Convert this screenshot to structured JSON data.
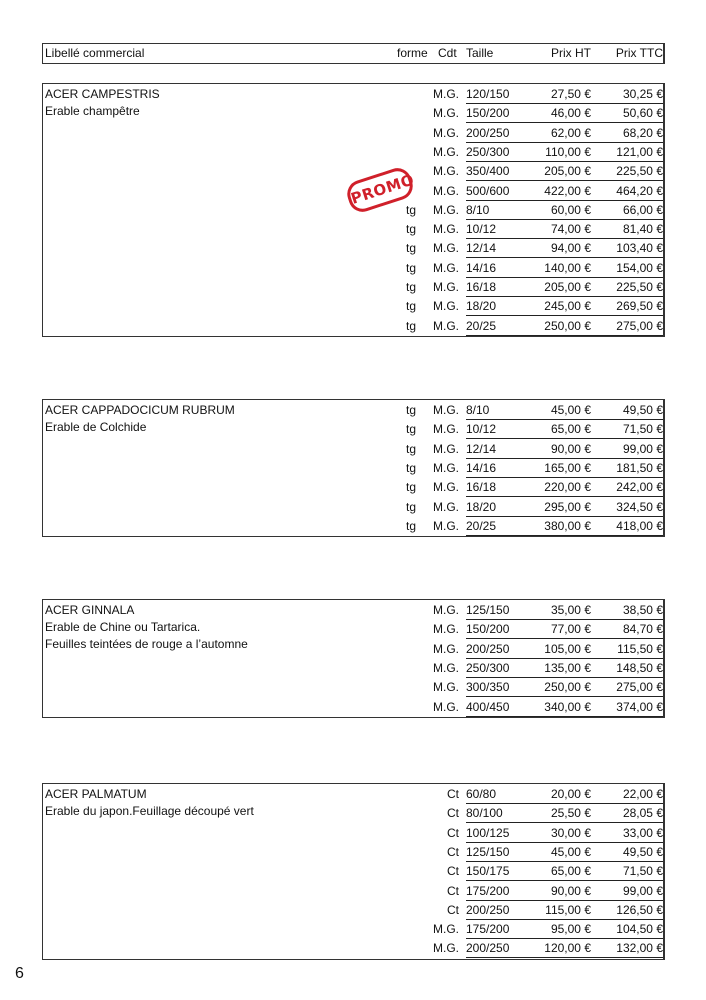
{
  "header": {
    "libelle": "Libellé commercial",
    "forme": "forme",
    "cdt": "Cdt",
    "taille": "Taille",
    "prix_ht": "Prix HT",
    "prix_ttc": "Prix TTC"
  },
  "promo_stamp": "PROMO",
  "page_number": "6",
  "sections": [
    {
      "name": "ACER CAMPESTRIS",
      "desc": [
        "Erable champêtre"
      ],
      "rows": [
        [
          "",
          "M.G.",
          "120/150",
          "27,50 €",
          "30,25 €"
        ],
        [
          "",
          "M.G.",
          "150/200",
          "46,00 €",
          "50,60 €"
        ],
        [
          "",
          "M.G.",
          "200/250",
          "62,00 €",
          "68,20 €"
        ],
        [
          "",
          "M.G.",
          "250/300",
          "110,00 €",
          "121,00 €"
        ],
        [
          "",
          "M.G.",
          "350/400",
          "205,00 €",
          "225,50 €"
        ],
        [
          "",
          "M.G.",
          "500/600",
          "422,00 €",
          "464,20 €"
        ],
        [
          "tg",
          "M.G.",
          "8/10",
          "60,00 €",
          "66,00 €"
        ],
        [
          "tg",
          "M.G.",
          "10/12",
          "74,00 €",
          "81,40 €"
        ],
        [
          "tg",
          "M.G.",
          "12/14",
          "94,00 €",
          "103,40 €"
        ],
        [
          "tg",
          "M.G.",
          "14/16",
          "140,00 €",
          "154,00 €"
        ],
        [
          "tg",
          "M.G.",
          "16/18",
          "205,00 €",
          "225,50 €"
        ],
        [
          "tg",
          "M.G.",
          "18/20",
          "245,00 €",
          "269,50 €"
        ],
        [
          "tg",
          "M.G.",
          "20/25",
          "250,00 €",
          "275,00 €"
        ]
      ]
    },
    {
      "name": "ACER CAPPADOCICUM RUBRUM",
      "desc": [
        "Erable de Colchide"
      ],
      "rows": [
        [
          "tg",
          "M.G.",
          "8/10",
          "45,00 €",
          "49,50 €"
        ],
        [
          "tg",
          "M.G.",
          "10/12",
          "65,00 €",
          "71,50 €"
        ],
        [
          "tg",
          "M.G.",
          "12/14",
          "90,00 €",
          "99,00 €"
        ],
        [
          "tg",
          "M.G.",
          "14/16",
          "165,00 €",
          "181,50 €"
        ],
        [
          "tg",
          "M.G.",
          "16/18",
          "220,00 €",
          "242,00 €"
        ],
        [
          "tg",
          "M.G.",
          "18/20",
          "295,00 €",
          "324,50 €"
        ],
        [
          "tg",
          "M.G.",
          "20/25",
          "380,00 €",
          "418,00 €"
        ]
      ]
    },
    {
      "name": "ACER GINNALA",
      "desc": [
        "Erable de Chine ou Tartarica.",
        "Feuilles teintées de rouge a l’automne"
      ],
      "rows": [
        [
          "",
          "M.G.",
          "125/150",
          "35,00 €",
          "38,50 €"
        ],
        [
          "",
          "M.G.",
          "150/200",
          "77,00 €",
          "84,70 €"
        ],
        [
          "",
          "M.G.",
          "200/250",
          "105,00 €",
          "115,50 €"
        ],
        [
          "",
          "M.G.",
          "250/300",
          "135,00 €",
          "148,50 €"
        ],
        [
          "",
          "M.G.",
          "300/350",
          "250,00 €",
          "275,00 €"
        ],
        [
          "",
          "M.G.",
          "400/450",
          "340,00 €",
          "374,00 €"
        ]
      ]
    },
    {
      "name": "ACER PALMATUM",
      "desc": [
        "Erable du japon.Feuillage découpé vert"
      ],
      "rows": [
        [
          "",
          "Ct",
          "60/80",
          "20,00 €",
          "22,00 €"
        ],
        [
          "",
          "Ct",
          "80/100",
          "25,50 €",
          "28,05 €"
        ],
        [
          "",
          "Ct",
          "100/125",
          "30,00 €",
          "33,00 €"
        ],
        [
          "",
          "Ct",
          "125/150",
          "45,00 €",
          "49,50 €"
        ],
        [
          "",
          "Ct",
          "150/175",
          "65,00 €",
          "71,50 €"
        ],
        [
          "",
          "Ct",
          "175/200",
          "90,00 €",
          "99,00 €"
        ],
        [
          "",
          "Ct",
          "200/250",
          "115,00 €",
          "126,50 €"
        ],
        [
          "",
          "M.G.",
          "175/200",
          "95,00 €",
          "104,50 €"
        ],
        [
          "",
          "M.G.",
          "200/250",
          "120,00 €",
          "132,00 €"
        ]
      ]
    }
  ]
}
